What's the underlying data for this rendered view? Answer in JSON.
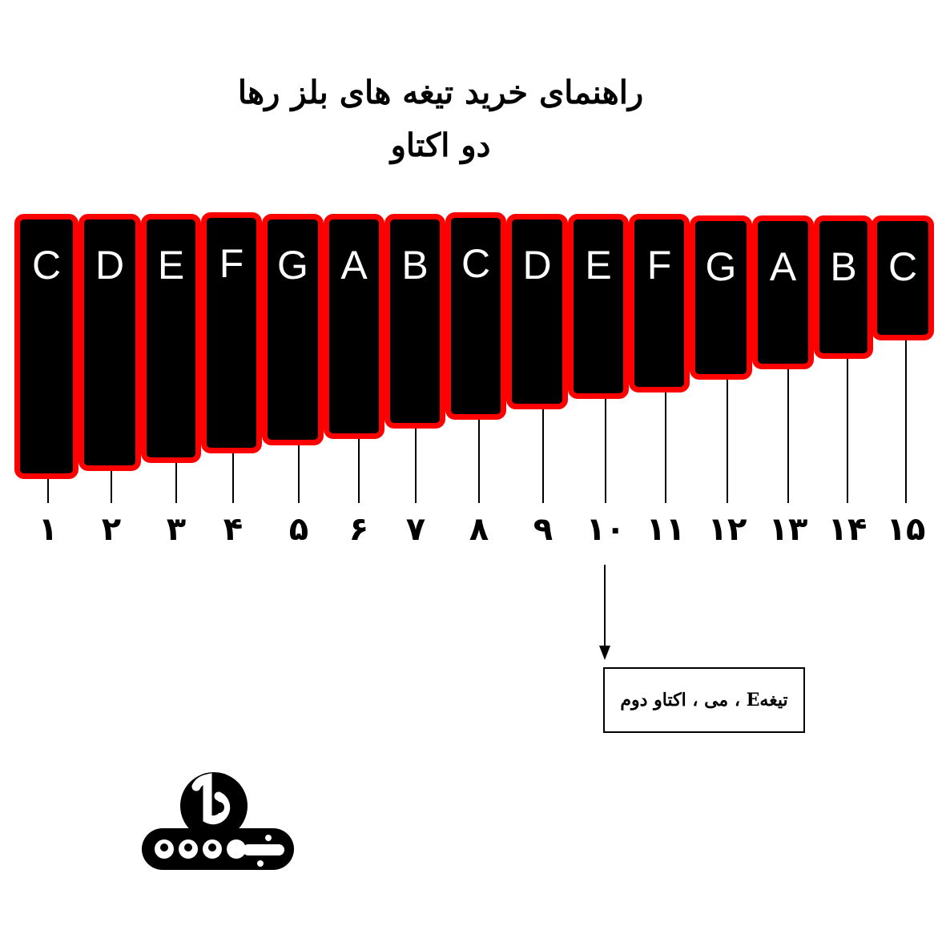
{
  "title": {
    "line1": "راهنمای خرید تیغه های بلز رها",
    "line2": "دو اکتاو"
  },
  "colors": {
    "bar_fill": "#000000",
    "bar_border": "#ff0000",
    "note_text": "#ffffff"
  },
  "bars": [
    {
      "note": "C",
      "number": "۱"
    },
    {
      "note": "D",
      "number": "۲"
    },
    {
      "note": "E",
      "number": "۳"
    },
    {
      "note": "F",
      "number": "۴"
    },
    {
      "note": "G",
      "number": "۵"
    },
    {
      "note": "A",
      "number": "۶"
    },
    {
      "note": "B",
      "number": "۷"
    },
    {
      "note": "C",
      "number": "۸"
    },
    {
      "note": "D",
      "number": "۹"
    },
    {
      "note": "E",
      "number": "۱۰"
    },
    {
      "note": "F",
      "number": "۱۱"
    },
    {
      "note": "G",
      "number": "۱۲"
    },
    {
      "note": "A",
      "number": "۱۳"
    },
    {
      "note": "B",
      "number": "۱۴"
    },
    {
      "note": "C",
      "number": "۱۵"
    }
  ],
  "callout": {
    "text": "تیغهE ، می ، اکتاو دوم",
    "points_to_bar": 10
  },
  "logo": {
    "text": "بتهوون",
    "letter": "b"
  }
}
